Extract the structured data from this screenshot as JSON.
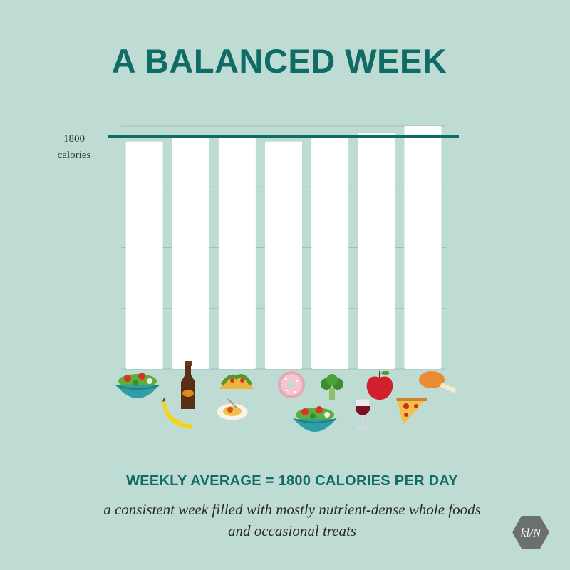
{
  "header": {
    "title": "A BALANCED WEEK"
  },
  "chart_data": {
    "type": "bar",
    "categories": [
      "",
      "",
      "",
      "",
      "",
      "",
      ""
    ],
    "values": [
      1760,
      1790,
      1800,
      1760,
      1800,
      1830,
      1880
    ],
    "ylim": [
      0,
      1880
    ],
    "grid": true,
    "reference_line": {
      "value": 1800,
      "label_line1": "1800",
      "label_line2": "calories"
    },
    "food_icons": [
      [
        "salad-bowl-icon"
      ],
      [
        "beer-bottle-icon",
        "banana-icon"
      ],
      [
        "taco-icon",
        "spaghetti-plate-icon"
      ],
      [
        "donut-icon"
      ],
      [
        "broccoli-icon",
        "salad-bowl-icon"
      ],
      [
        "apple-icon",
        "red-wine-glass-icon"
      ],
      [
        "chicken-drumstick-icon",
        "pizza-slice-icon"
      ]
    ],
    "colors": {
      "bar": "#ffffff",
      "reference_line": "#0f6b66",
      "grid": "#9fbfb7"
    }
  },
  "footer": {
    "summary": "WEEKLY AVERAGE = 1800 CALORIES PER DAY",
    "caption": "a consistent week filled with mostly nutrient-dense whole foods and occasional treats",
    "logo_text": "kl/N"
  },
  "colors": {
    "background": "#bfdcd4",
    "accent": "#0f6b66"
  }
}
